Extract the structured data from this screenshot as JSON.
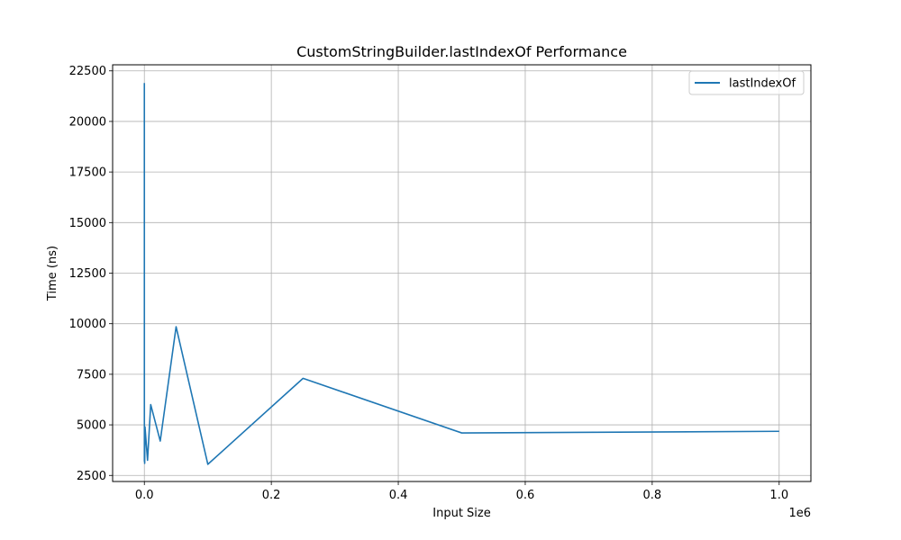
{
  "chart_data": {
    "type": "line",
    "title": "CustomStringBuilder.lastIndexOf Performance",
    "xlabel": "Input Size",
    "ylabel": "Time (ns)",
    "x_offset_text": "1e6",
    "xlim": [
      -50000,
      1050000
    ],
    "ylim": [
      2200,
      22800
    ],
    "xticks": [
      0,
      200000,
      400000,
      600000,
      800000,
      1000000
    ],
    "xtick_labels": [
      "0.0",
      "0.2",
      "0.4",
      "0.6",
      "0.8",
      "1.0"
    ],
    "yticks": [
      2500,
      5000,
      7500,
      10000,
      12500,
      15000,
      17500,
      20000,
      22500
    ],
    "ytick_labels": [
      "2500",
      "5000",
      "7500",
      "10000",
      "12500",
      "15000",
      "17500",
      "20000",
      "22500"
    ],
    "grid": true,
    "legend_position": "top-right",
    "series": [
      {
        "name": "lastIndexOf",
        "color": "#1f77b4",
        "x": [
          10,
          50,
          100,
          500,
          1000,
          5000,
          10000,
          25000,
          50000,
          100000,
          250000,
          500000,
          1000000
        ],
        "y": [
          21900,
          3200,
          3300,
          3100,
          4900,
          3250,
          6000,
          4200,
          9850,
          3050,
          7300,
          4600,
          4680
        ]
      }
    ]
  }
}
